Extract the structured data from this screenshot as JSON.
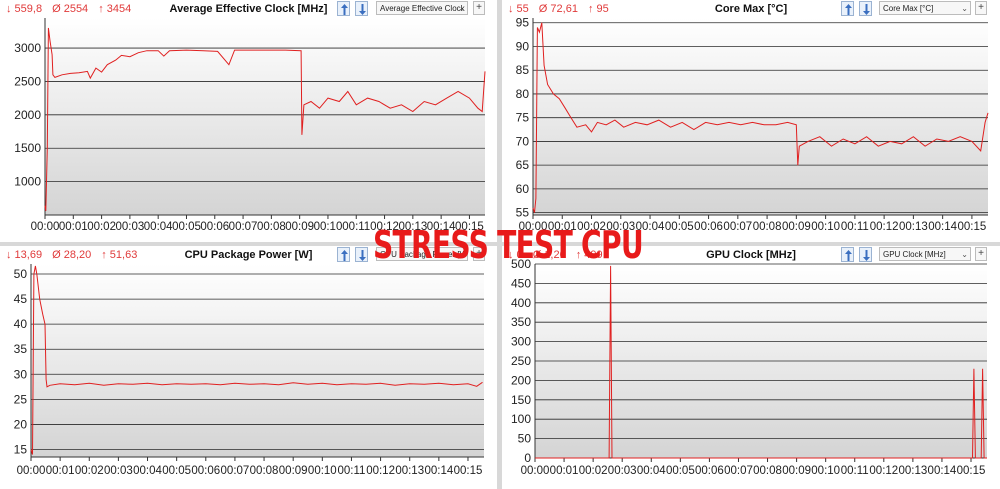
{
  "overlay_text": "STRESS TEST CPU",
  "time_labels": [
    "00:00",
    "00:01",
    "00:02",
    "00:03",
    "00:04",
    "00:05",
    "00:06",
    "00:07",
    "00:08",
    "00:09",
    "00:10",
    "00:11",
    "00:12",
    "00:13",
    "00:14",
    "00:15"
  ],
  "panels": [
    {
      "title": "Average Effective Clock [MHz]",
      "stat_min": "↓ 559,8",
      "stat_avg": "Ø 2554",
      "stat_max": "↑ 3454",
      "selector": "Average Effective Clock [M",
      "y_ticks": [
        "1000",
        "1500",
        "2000",
        "2500",
        "3000"
      ],
      "ylim": [
        500,
        3450
      ],
      "series": [
        [
          0,
          640
        ],
        [
          0.03,
          560
        ],
        [
          0.08,
          1500
        ],
        [
          0.12,
          3300
        ],
        [
          0.18,
          3100
        ],
        [
          0.25,
          2900
        ],
        [
          0.28,
          2600
        ],
        [
          0.35,
          2560
        ],
        [
          0.6,
          2600
        ],
        [
          0.9,
          2620
        ],
        [
          1.2,
          2630
        ],
        [
          1.5,
          2650
        ],
        [
          1.6,
          2550
        ],
        [
          1.8,
          2700
        ],
        [
          2.0,
          2640
        ],
        [
          2.2,
          2750
        ],
        [
          2.5,
          2820
        ],
        [
          2.7,
          2890
        ],
        [
          3.0,
          2870
        ],
        [
          3.3,
          2930
        ],
        [
          3.6,
          2960
        ],
        [
          4.0,
          2960
        ],
        [
          4.2,
          2880
        ],
        [
          4.4,
          2960
        ],
        [
          5.0,
          2970
        ],
        [
          5.6,
          2960
        ],
        [
          6.1,
          2950
        ],
        [
          6.5,
          2750
        ],
        [
          6.7,
          2970
        ],
        [
          7.5,
          2970
        ],
        [
          8.5,
          2970
        ],
        [
          9.05,
          2960
        ],
        [
          9.08,
          1700
        ],
        [
          9.15,
          2150
        ],
        [
          9.4,
          2200
        ],
        [
          9.7,
          2100
        ],
        [
          10.0,
          2250
        ],
        [
          10.4,
          2200
        ],
        [
          10.7,
          2350
        ],
        [
          11.0,
          2150
        ],
        [
          11.4,
          2250
        ],
        [
          11.8,
          2200
        ],
        [
          12.2,
          2100
        ],
        [
          12.6,
          2150
        ],
        [
          13.0,
          2050
        ],
        [
          13.4,
          2200
        ],
        [
          13.8,
          2150
        ],
        [
          14.2,
          2250
        ],
        [
          14.6,
          2350
        ],
        [
          15.0,
          2250
        ],
        [
          15.3,
          2100
        ],
        [
          15.45,
          2050
        ],
        [
          15.55,
          2650
        ]
      ]
    },
    {
      "title": "Core Max [°C]",
      "stat_min": "↓ 55",
      "stat_avg": "Ø 72,61",
      "stat_max": "↑ 95",
      "selector": "Core Max [°C]",
      "y_ticks": [
        "55",
        "60",
        "65",
        "70",
        "75",
        "80",
        "85",
        "90",
        "95"
      ],
      "ylim": [
        54.5,
        96
      ],
      "series": [
        [
          0,
          56
        ],
        [
          0.05,
          55
        ],
        [
          0.1,
          58
        ],
        [
          0.15,
          94
        ],
        [
          0.22,
          93
        ],
        [
          0.3,
          95
        ],
        [
          0.38,
          86
        ],
        [
          0.5,
          82
        ],
        [
          0.7,
          80
        ],
        [
          0.9,
          79
        ],
        [
          1.1,
          77
        ],
        [
          1.3,
          75
        ],
        [
          1.5,
          73
        ],
        [
          1.8,
          73.5
        ],
        [
          2.0,
          72
        ],
        [
          2.2,
          74
        ],
        [
          2.5,
          73.5
        ],
        [
          2.8,
          74.5
        ],
        [
          3.1,
          73
        ],
        [
          3.5,
          74
        ],
        [
          3.9,
          73.5
        ],
        [
          4.3,
          74.5
        ],
        [
          4.7,
          73
        ],
        [
          5.1,
          74
        ],
        [
          5.5,
          72.5
        ],
        [
          5.9,
          74
        ],
        [
          6.3,
          73.5
        ],
        [
          6.7,
          74
        ],
        [
          7.1,
          73.5
        ],
        [
          7.5,
          74
        ],
        [
          7.9,
          73.5
        ],
        [
          8.3,
          73.5
        ],
        [
          8.7,
          74
        ],
        [
          9.0,
          73.5
        ],
        [
          9.05,
          65
        ],
        [
          9.1,
          69
        ],
        [
          9.4,
          70
        ],
        [
          9.8,
          71
        ],
        [
          10.2,
          69
        ],
        [
          10.6,
          70.5
        ],
        [
          11.0,
          69.5
        ],
        [
          11.4,
          71
        ],
        [
          11.8,
          69
        ],
        [
          12.2,
          70
        ],
        [
          12.6,
          69.5
        ],
        [
          13.0,
          71
        ],
        [
          13.4,
          69
        ],
        [
          13.8,
          70.5
        ],
        [
          14.2,
          70
        ],
        [
          14.6,
          71
        ],
        [
          15.0,
          70
        ],
        [
          15.3,
          68
        ],
        [
          15.45,
          74
        ],
        [
          15.55,
          76
        ]
      ]
    },
    {
      "title": "CPU Package Power [W]",
      "stat_min": "↓ 13,69",
      "stat_avg": "Ø 28,20",
      "stat_max": "↑ 51,63",
      "selector": "CPU Package Power [W]",
      "y_ticks": [
        "15",
        "20",
        "25",
        "30",
        "35",
        "40",
        "45",
        "50"
      ],
      "ylim": [
        13.5,
        52
      ],
      "series": [
        [
          0,
          15
        ],
        [
          0.05,
          14
        ],
        [
          0.1,
          50
        ],
        [
          0.15,
          51.6
        ],
        [
          0.2,
          50
        ],
        [
          0.3,
          45
        ],
        [
          0.4,
          42
        ],
        [
          0.48,
          40
        ],
        [
          0.52,
          29
        ],
        [
          0.55,
          27.5
        ],
        [
          0.65,
          27.8
        ],
        [
          1.0,
          28.1
        ],
        [
          1.5,
          27.9
        ],
        [
          2.0,
          28.2
        ],
        [
          2.5,
          27.8
        ],
        [
          3.0,
          28.1
        ],
        [
          3.5,
          28.0
        ],
        [
          4.0,
          28.2
        ],
        [
          4.5,
          27.9
        ],
        [
          5.0,
          28.1
        ],
        [
          5.5,
          28.0
        ],
        [
          6.0,
          28.1
        ],
        [
          6.5,
          27.9
        ],
        [
          7.0,
          28.2
        ],
        [
          7.5,
          28.0
        ],
        [
          8.0,
          28.1
        ],
        [
          8.5,
          27.9
        ],
        [
          9.0,
          28.3
        ],
        [
          9.5,
          28.0
        ],
        [
          10.0,
          28.2
        ],
        [
          10.5,
          27.9
        ],
        [
          11.0,
          28.1
        ],
        [
          11.5,
          28.0
        ],
        [
          12.0,
          28.2
        ],
        [
          12.5,
          27.8
        ],
        [
          13.0,
          28.1
        ],
        [
          13.5,
          28.0
        ],
        [
          14.0,
          28.2
        ],
        [
          14.5,
          27.9
        ],
        [
          15.0,
          28.1
        ],
        [
          15.3,
          27.6
        ],
        [
          15.5,
          28.4
        ]
      ]
    },
    {
      "title": "GPU Clock [MHz]",
      "stat_min": "↓ 0",
      "stat_avg": "Ø 1,20",
      "stat_max": "↑ 499",
      "selector": "GPU Clock [MHz]",
      "y_ticks": [
        "0",
        "50",
        "100",
        "150",
        "200",
        "250",
        "300",
        "350",
        "400",
        "450",
        "500"
      ],
      "ylim": [
        0,
        500
      ],
      "series": [
        [
          0,
          0
        ],
        [
          2.55,
          0
        ],
        [
          2.6,
          495
        ],
        [
          2.65,
          0
        ],
        [
          15.05,
          0
        ],
        [
          15.1,
          230
        ],
        [
          15.15,
          0
        ],
        [
          15.35,
          0
        ],
        [
          15.4,
          230
        ],
        [
          15.45,
          0
        ],
        [
          15.55,
          0
        ]
      ]
    }
  ]
}
